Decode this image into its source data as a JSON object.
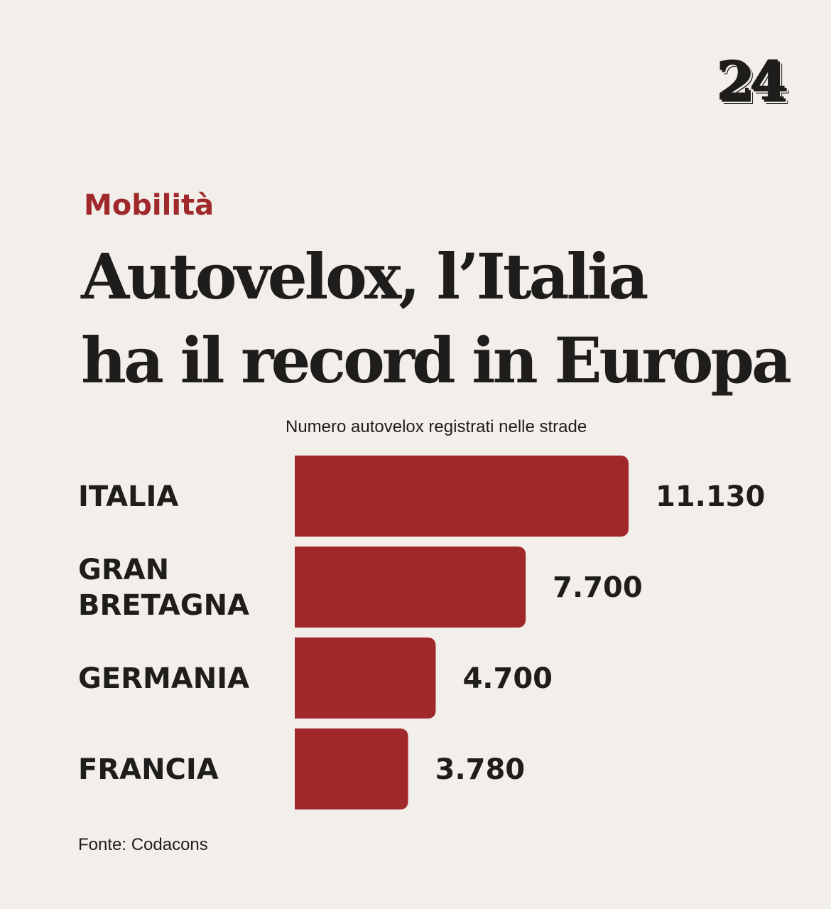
{
  "logo": "24",
  "category": "Mobilità",
  "headline": [
    "Autovelox, l’Italia",
    "ha il record in Europa"
  ],
  "chart_data": {
    "type": "bar",
    "orientation": "horizontal",
    "title": "Numero autovelox registrati nelle strade",
    "categories": [
      [
        "ITALIA"
      ],
      [
        "GRAN",
        "BRETAGNA"
      ],
      [
        "GERMANIA"
      ],
      [
        "FRANCIA"
      ]
    ],
    "values": [
      11130,
      7700,
      4700,
      3780
    ],
    "value_labels": [
      "11.130",
      "7.700",
      "4.700",
      "3.780"
    ],
    "bar_color": "#a0282b",
    "grid": false,
    "legend": "none"
  },
  "source": "Fonte: Codacons"
}
